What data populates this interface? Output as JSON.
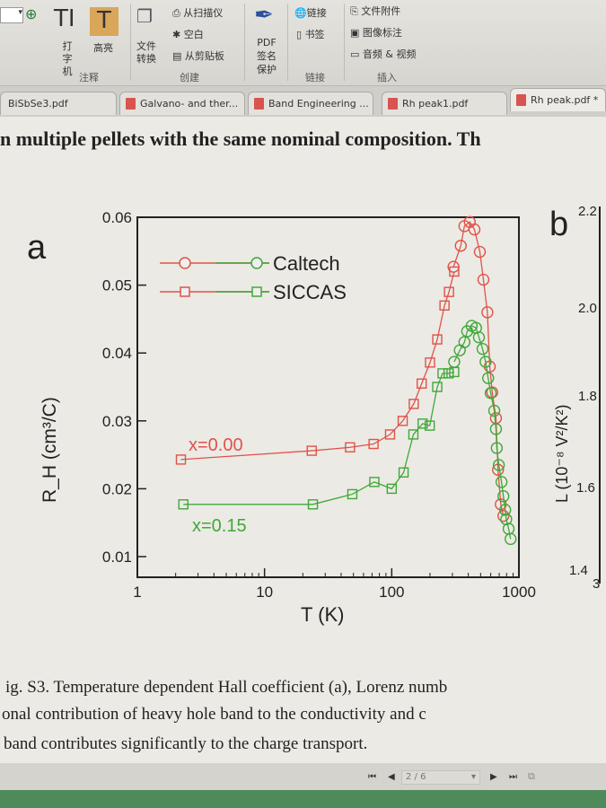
{
  "toolbar": {
    "zoom_icon": "zoom-in-icon",
    "typewriter": "打字机",
    "highlight": "高亮",
    "annotate_group": "注释",
    "convert": "文件转换",
    "from_scanner": "从扫描仪",
    "blank": "空白",
    "from_clipboard": "从剪贴板",
    "create_group": "创建",
    "pdf_sign": "PDF签名保护",
    "link": "链接",
    "bookmark": "书签",
    "link_group": "链接",
    "file_attachment": "文件附件",
    "image_annotation": "图像标注",
    "audio_video": "音频 & 视频",
    "insert_group": "插入"
  },
  "tabs": [
    {
      "label": "BiSbSe3.pdf"
    },
    {
      "label": "Galvano- and ther..."
    },
    {
      "label": "Band Engineering ..."
    },
    {
      "label": "Rh  peak1.pdf"
    },
    {
      "label": "Rh  peak.pdf *",
      "active": true
    }
  ],
  "page": {
    "top_text": "n multiple pellets with the same nominal composition. Th",
    "caption": [
      "ig. S3. Temperature dependent Hall coefficient (a), Lorenz numb",
      "onal contribution of heavy hole band to the conductivity and c",
      "band contributes significantly to the charge transport."
    ],
    "panel_b": {
      "label": "b",
      "ylabel": "L (10⁻⁸ V²/K²)",
      "ticks": [
        "2.2",
        "2.0",
        "1.8",
        "1.6",
        "1.4",
        "3"
      ]
    }
  },
  "nav": {
    "page": "2 / 6"
  },
  "colors": {
    "red": "#e0524a",
    "green": "#3fa83a"
  },
  "chart_data": {
    "type": "scatter",
    "panel_label": "a",
    "xlabel": "T (K)",
    "ylabel": "R_H (cm³/C)",
    "xscale": "log",
    "xlim": [
      1,
      1000
    ],
    "ylim": [
      0.01,
      0.06
    ],
    "xticks": [
      "1",
      "10",
      "100",
      "1000"
    ],
    "yticks": [
      "0.01",
      "0.02",
      "0.03",
      "0.04",
      "0.05",
      "0.06"
    ],
    "legend": [
      {
        "label": "Caltech",
        "marker": "circle"
      },
      {
        "label": "SICCAS",
        "marker": "square"
      }
    ],
    "legend_position": "top-left",
    "annotations": [
      {
        "text": "x=0.00",
        "color": "#e0524a"
      },
      {
        "text": "x=0.15",
        "color": "#3fa83a"
      }
    ],
    "series": [
      {
        "source": "SICCAS",
        "composition": "x=0.00",
        "marker": "square",
        "color": "#e0524a",
        "x": [
          2.2,
          23.5,
          47,
          72,
          97,
          122,
          149,
          172,
          200,
          228,
          260,
          282,
          310
        ],
        "y": [
          0.0243,
          0.0256,
          0.0261,
          0.0266,
          0.028,
          0.03,
          0.0325,
          0.0355,
          0.0386,
          0.042,
          0.047,
          0.049,
          0.052
        ]
      },
      {
        "source": "Caltech",
        "composition": "x=0.00",
        "marker": "circle",
        "color": "#e0524a",
        "x": [
          306,
          349,
          373,
          411,
          447,
          493,
          526,
          565,
          590,
          617,
          660,
          685,
          720,
          755
        ],
        "y": [
          0.0527,
          0.0558,
          0.0587,
          0.0593,
          0.0582,
          0.0549,
          0.0508,
          0.046,
          0.038,
          0.0342,
          0.0304,
          0.0228,
          0.0177,
          0.016
        ]
      },
      {
        "source": "SICCAS",
        "composition": "x=0.15",
        "marker": "square",
        "color": "#3fa83a",
        "x": [
          2.3,
          24,
          49,
          73,
          100,
          124,
          148,
          175,
          199,
          228,
          251,
          280,
          310
        ],
        "y": [
          0.0177,
          0.0177,
          0.0192,
          0.021,
          0.02,
          0.0224,
          0.028,
          0.0296,
          0.0293,
          0.035,
          0.037,
          0.037,
          0.0372
        ]
      },
      {
        "source": "Caltech",
        "composition": "x=0.15",
        "marker": "circle",
        "color": "#3fa83a",
        "x": [
          310,
          343,
          373,
          392,
          425,
          460,
          485,
          518,
          547,
          573,
          600,
          640,
          660,
          670,
          695,
          730,
          755,
          780,
          795,
          830,
          860
        ],
        "y": [
          0.0387,
          0.0404,
          0.0416,
          0.0432,
          0.044,
          0.0437,
          0.0423,
          0.0406,
          0.0387,
          0.0363,
          0.0341,
          0.0315,
          0.0288,
          0.026,
          0.0235,
          0.021,
          0.0189,
          0.0169,
          0.0155,
          0.0141,
          0.0126
        ]
      }
    ]
  }
}
